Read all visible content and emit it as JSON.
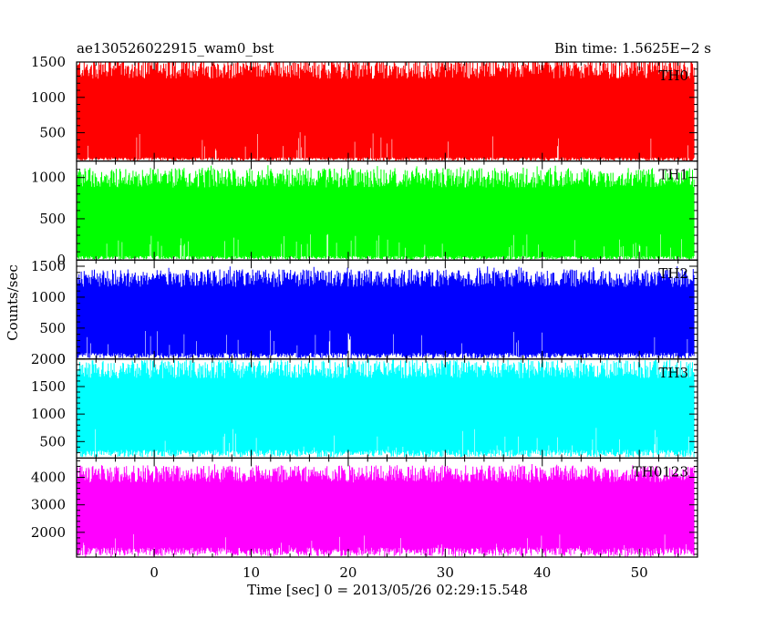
{
  "header": {
    "left": "ae130526022915_wam0_bst",
    "right": "Bin time: 1.5625E−2 s"
  },
  "chart_data": {
    "type": "line",
    "title": "ae130526022915_wam0_bst",
    "subtitle": "Bin time: 1.5625E−2 s",
    "xlabel": "Time [sec] 0 = 2013/05/26 02:29:15.548",
    "ylabel": "Counts/sec",
    "xlim": [
      -8,
      56
    ],
    "xticks": [
      0,
      10,
      20,
      30,
      40,
      50
    ],
    "grid": false,
    "panels": [
      {
        "name": "TH0",
        "color": "#ff0000",
        "ylim": [
          100,
          1500
        ],
        "yticks": [
          500,
          1000,
          1500
        ],
        "mean": 700,
        "envelope_low": 150,
        "envelope_high": 1350,
        "spike_max": 1500
      },
      {
        "name": "TH1",
        "color": "#00ff00",
        "ylim": [
          0,
          1200
        ],
        "yticks": [
          0,
          500,
          1000
        ],
        "mean": 420,
        "envelope_low": 50,
        "envelope_high": 950,
        "spike_max": 1150
      },
      {
        "name": "TH2",
        "color": "#0000ff",
        "ylim": [
          0,
          1600
        ],
        "yticks": [
          0,
          500,
          1000,
          1500
        ],
        "mean": 620,
        "envelope_low": 100,
        "envelope_high": 1250,
        "spike_max": 1500
      },
      {
        "name": "TH3",
        "color": "#00ffff",
        "ylim": [
          200,
          2000
        ],
        "yticks": [
          500,
          1000,
          1500,
          2000
        ],
        "mean": 1000,
        "envelope_low": 350,
        "envelope_high": 1750,
        "spike_max": 2000
      },
      {
        "name": "TH0123",
        "color": "#ff00ff",
        "ylim": [
          1100,
          4700
        ],
        "yticks": [
          2000,
          3000,
          4000
        ],
        "mean": 2600,
        "envelope_low": 1450,
        "envelope_high": 4000,
        "spike_max": 4500
      }
    ]
  }
}
